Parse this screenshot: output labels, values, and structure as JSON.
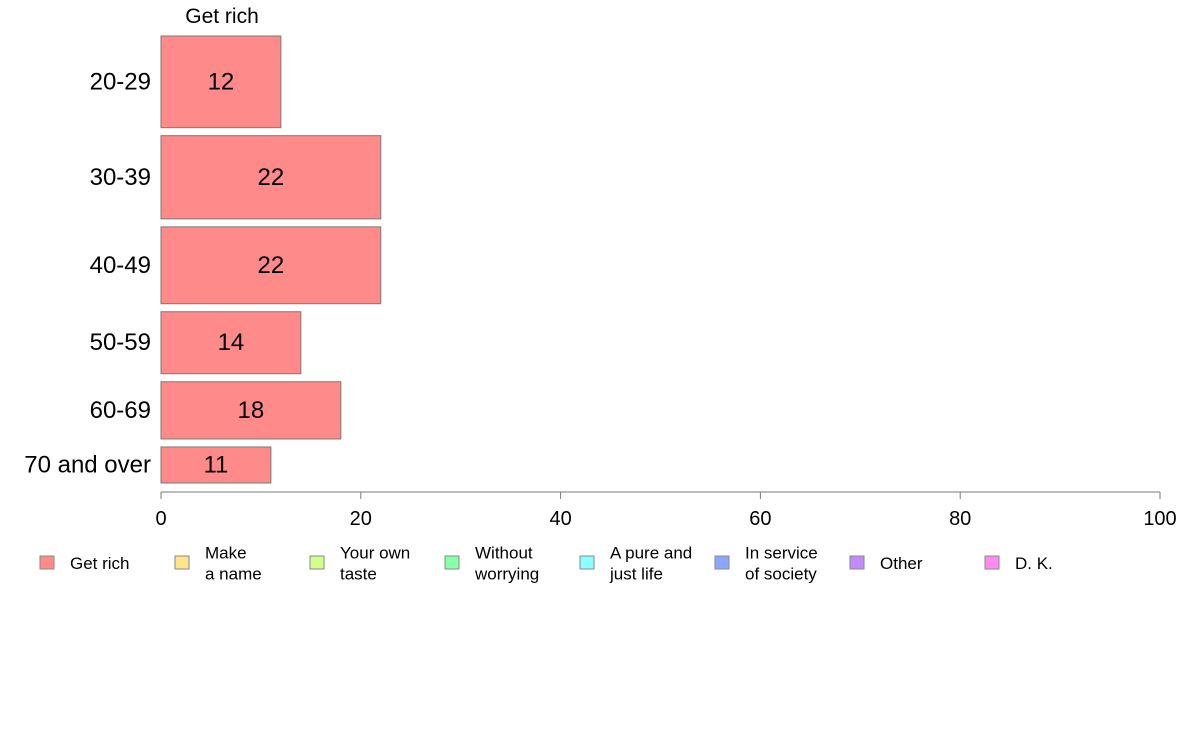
{
  "chart_data": {
    "type": "bar",
    "orientation": "horizontal",
    "panel_title": "Get rich",
    "categories": [
      "20-29",
      "30-39",
      "40-49",
      "50-59",
      "60-69",
      "70 and over"
    ],
    "series": [
      {
        "name": "Get rich",
        "values": [
          12,
          22,
          22,
          14,
          18,
          11
        ],
        "labels": [
          "12",
          "22",
          "22",
          "14",
          "18",
          "11"
        ]
      }
    ],
    "bar_widths_pct": [
      17.3,
      15.7,
      14.5,
      11.7,
      10.8,
      6.8
    ],
    "xlim": [
      0,
      100
    ],
    "x_ticks": [
      "0",
      "20",
      "40",
      "60",
      "80",
      "100"
    ],
    "grid": false,
    "legend_position": "bottom",
    "legend": [
      {
        "label": [
          "Get rich"
        ],
        "color": "#ff8a8a"
      },
      {
        "label": [
          "Make",
          "a name"
        ],
        "color": "#ffe48a"
      },
      {
        "label": [
          "Your own",
          "taste"
        ],
        "color": "#d2ff8a"
      },
      {
        "label": [
          "Without",
          "worrying"
        ],
        "color": "#8affaa"
      },
      {
        "label": [
          "A pure and",
          "just life"
        ],
        "color": "#8affff"
      },
      {
        "label": [
          "In service",
          "of society"
        ],
        "color": "#8aa8ff"
      },
      {
        "label": [
          "Other"
        ],
        "color": "#c28aff"
      },
      {
        "label": [
          "D. K."
        ],
        "color": "#ff8af0"
      }
    ]
  }
}
